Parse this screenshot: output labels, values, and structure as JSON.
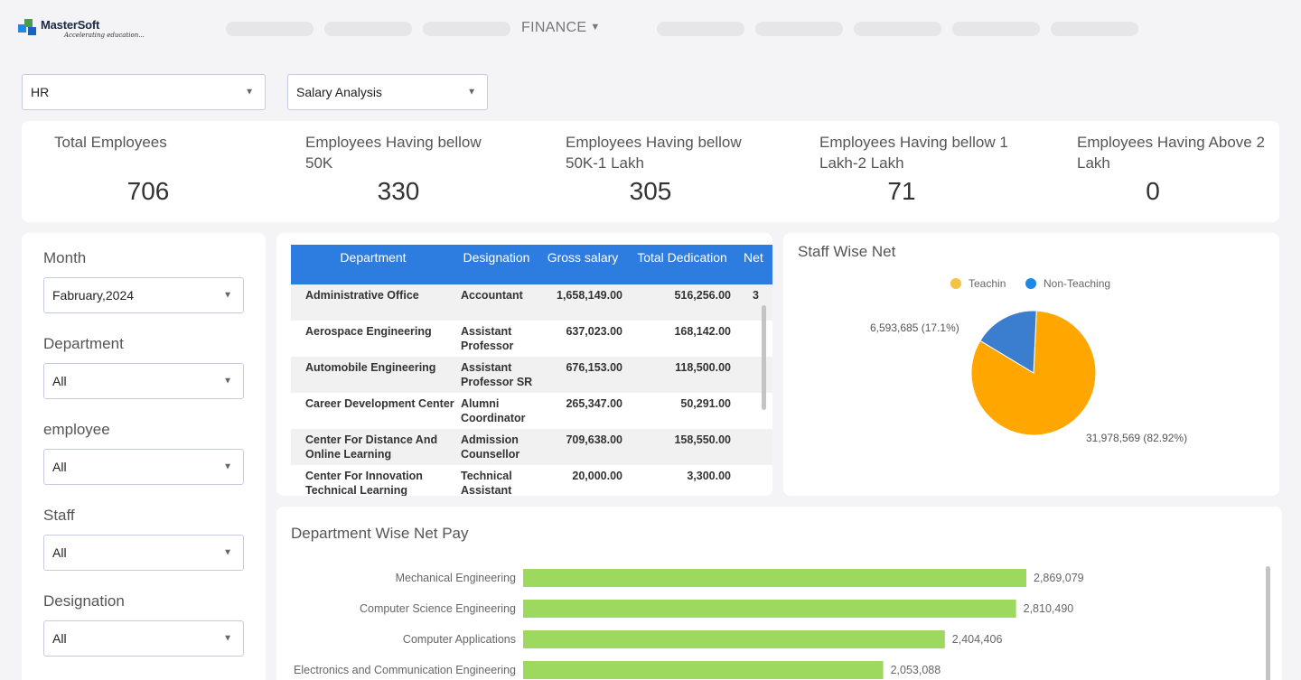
{
  "brand": {
    "name": "MasterSoft",
    "tagline": "Accelerating education..."
  },
  "nav": {
    "active": "FINANCE",
    "caret": "▼"
  },
  "selectors": {
    "module": "HR",
    "report": "Salary Analysis"
  },
  "kpis": [
    {
      "label": "Total Employees",
      "value": "706"
    },
    {
      "label": "Employees Having bellow 50K",
      "value": "330"
    },
    {
      "label": "Employees Having bellow 50K-1 Lakh",
      "value": "305"
    },
    {
      "label": "Employees Having bellow 1 Lakh-2 Lakh",
      "value": "71"
    },
    {
      "label": "Employees Having Above 2 Lakh",
      "value": "0"
    }
  ],
  "filters": [
    {
      "label": "Month",
      "value": "Fabruary,2024"
    },
    {
      "label": "Department",
      "value": "All"
    },
    {
      "label": "employee",
      "value": "All"
    },
    {
      "label": "Staff",
      "value": "All"
    },
    {
      "label": "Designation",
      "value": "All"
    }
  ],
  "table": {
    "columns": [
      "Department",
      "Designation",
      "Gross salary",
      "Total Dedication",
      "Net"
    ],
    "rows": [
      {
        "department": "Administrative Office",
        "designation": "Accountant",
        "gross": "1,658,149.00",
        "deduction": "516,256.00",
        "net": "3"
      },
      {
        "department": "Aerospace Engineering",
        "designation": "Assistant Professor",
        "gross": "637,023.00",
        "deduction": "168,142.00",
        "net": ""
      },
      {
        "department": "Automobile Engineering",
        "designation": "Assistant Professor SR",
        "gross": "676,153.00",
        "deduction": "118,500.00",
        "net": ""
      },
      {
        "department": "Career Development Center",
        "designation": "Alumni Coordinator",
        "gross": "265,347.00",
        "deduction": "50,291.00",
        "net": ""
      },
      {
        "department": "Center For Distance And Online Learning",
        "designation": "Admission Counsellor",
        "gross": "709,638.00",
        "deduction": "158,550.00",
        "net": ""
      },
      {
        "department": "Center For Innovation Technical Learning",
        "designation": "Technical Assistant",
        "gross": "20,000.00",
        "deduction": "3,300.00",
        "net": ""
      }
    ]
  },
  "colors": {
    "teaching": "#ffa600",
    "non_teaching": "#3b7dcf",
    "bar": "#9dd85f",
    "header": "#2d7de0"
  },
  "chart_data": [
    {
      "type": "pie",
      "title": "Staff Wise Net",
      "legend": [
        "Teachin",
        "Non-Teaching"
      ],
      "values": [
        31978569,
        6593685
      ],
      "labels": [
        "31,978,569 (82.92%)",
        "6,593,685 (17.1%)"
      ],
      "legend_position": "top"
    },
    {
      "type": "bar",
      "orientation": "horizontal",
      "title": "Department Wise Net Pay",
      "categories": [
        "Mechanical Engineering",
        "Computer Science Engineering",
        "Computer Applications",
        "Electronics and Communication Engineering"
      ],
      "values": [
        2869079,
        2810490,
        2404406,
        2053088
      ],
      "value_labels": [
        "2,869,079",
        "2,810,490",
        "2,404,406",
        "2,053,088"
      ],
      "xlim": [
        0,
        2869079
      ]
    }
  ]
}
